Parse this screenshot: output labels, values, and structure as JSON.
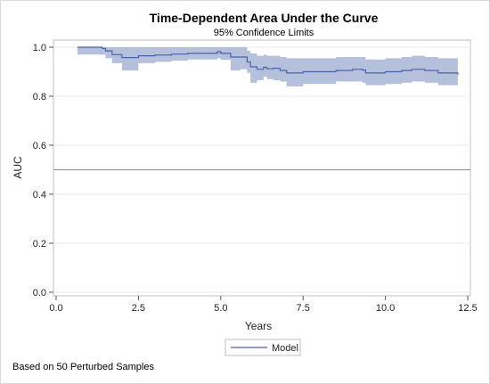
{
  "chart_data": {
    "type": "area",
    "title": "Time-Dependent Area Under the Curve",
    "subtitle": "95% Confidence Limits",
    "xlabel": "Years",
    "ylabel": "AUC",
    "xlim": [
      0.0,
      12.5
    ],
    "ylim": [
      0.0,
      1.0
    ],
    "x_ticks": [
      "0.0",
      "2.5",
      "5.0",
      "7.5",
      "10.0",
      "12.5"
    ],
    "y_ticks": [
      "0.0",
      "0.2",
      "0.4",
      "0.6",
      "0.8",
      "1.0"
    ],
    "reference_line_y": 0.5,
    "grid": true,
    "legend": {
      "position": "bottom",
      "entries": [
        "Model"
      ]
    },
    "colors": {
      "line": "#4a63a8",
      "band": "#b5c0dd",
      "grid": "#e8e8e8",
      "refline": "#9a9a9a"
    },
    "series": [
      {
        "name": "Model",
        "x": [
          0.65,
          1.4,
          1.5,
          1.7,
          2.0,
          2.5,
          3.0,
          3.5,
          4.0,
          4.9,
          5.0,
          5.3,
          5.6,
          5.8,
          5.9,
          6.1,
          6.3,
          6.4,
          6.6,
          6.8,
          7.0,
          7.5,
          8.0,
          8.5,
          9.0,
          9.3,
          9.4,
          10.0,
          10.5,
          10.8,
          11.2,
          11.6,
          12.2
        ],
        "y": [
          1.0,
          0.995,
          0.985,
          0.97,
          0.958,
          0.965,
          0.968,
          0.972,
          0.975,
          0.982,
          0.975,
          0.96,
          0.96,
          0.94,
          0.92,
          0.91,
          0.918,
          0.912,
          0.914,
          0.905,
          0.895,
          0.9,
          0.9,
          0.905,
          0.91,
          0.907,
          0.895,
          0.9,
          0.905,
          0.91,
          0.905,
          0.895,
          0.888
        ],
        "lower": [
          0.97,
          0.97,
          0.955,
          0.935,
          0.905,
          0.935,
          0.94,
          0.945,
          0.95,
          0.955,
          0.948,
          0.905,
          0.91,
          0.895,
          0.855,
          0.865,
          0.88,
          0.87,
          0.865,
          0.86,
          0.84,
          0.85,
          0.85,
          0.86,
          0.86,
          0.855,
          0.845,
          0.85,
          0.855,
          0.86,
          0.855,
          0.845,
          0.83
        ],
        "upper": [
          1.0,
          1.0,
          1.0,
          1.0,
          1.0,
          1.0,
          1.0,
          1.0,
          1.0,
          1.0,
          1.0,
          1.0,
          1.0,
          0.985,
          0.975,
          0.965,
          0.97,
          0.965,
          0.965,
          0.96,
          0.955,
          0.955,
          0.955,
          0.96,
          0.96,
          0.96,
          0.95,
          0.955,
          0.96,
          0.965,
          0.96,
          0.955,
          0.948
        ]
      }
    ],
    "footnote": "Based on 50 Perturbed Samples"
  }
}
